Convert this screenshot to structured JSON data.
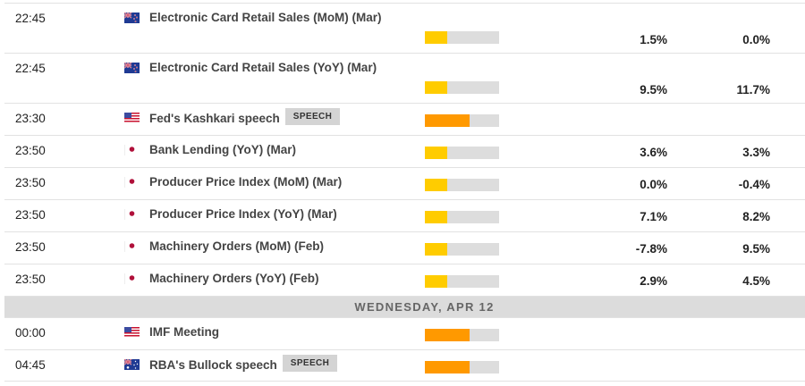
{
  "colors": {
    "impact_low": "#ffcc00",
    "impact_medium": "#ff9900",
    "impact_track": "#dddddd",
    "tag_bg": "#d4d4d4",
    "day_header_bg": "#dcdcdc"
  },
  "rows_before": [
    {
      "time": "22:45",
      "flag": "new-zealand",
      "event": "Electronic Card Retail Sales (MoM) (Mar)",
      "tag": "",
      "impact": "low",
      "impact_pct": 30,
      "actual": "1.5%",
      "forecast": "0.0%",
      "layout": "tall"
    },
    {
      "time": "22:45",
      "flag": "new-zealand",
      "event": "Electronic Card Retail Sales (YoY) (Mar)",
      "tag": "",
      "impact": "low",
      "impact_pct": 30,
      "actual": "9.5%",
      "forecast": "11.7%",
      "layout": "tall"
    },
    {
      "time": "23:30",
      "flag": "united-states",
      "event": "Fed's Kashkari speech",
      "tag": "SPEECH",
      "impact": "medium",
      "impact_pct": 60,
      "actual": "",
      "forecast": "",
      "layout": "short"
    },
    {
      "time": "23:50",
      "flag": "japan",
      "event": "Bank Lending (YoY) (Mar)",
      "tag": "",
      "impact": "low",
      "impact_pct": 30,
      "actual": "3.6%",
      "forecast": "3.3%",
      "layout": "short"
    },
    {
      "time": "23:50",
      "flag": "japan",
      "event": "Producer Price Index (MoM) (Mar)",
      "tag": "",
      "impact": "low",
      "impact_pct": 30,
      "actual": "0.0%",
      "forecast": "-0.4%",
      "layout": "short"
    },
    {
      "time": "23:50",
      "flag": "japan",
      "event": "Producer Price Index (YoY) (Mar)",
      "tag": "",
      "impact": "low",
      "impact_pct": 30,
      "actual": "7.1%",
      "forecast": "8.2%",
      "layout": "short"
    },
    {
      "time": "23:50",
      "flag": "japan",
      "event": "Machinery Orders (MoM) (Feb)",
      "tag": "",
      "impact": "low",
      "impact_pct": 30,
      "actual": "-7.8%",
      "forecast": "9.5%",
      "layout": "short"
    },
    {
      "time": "23:50",
      "flag": "japan",
      "event": "Machinery Orders (YoY) (Feb)",
      "tag": "",
      "impact": "low",
      "impact_pct": 30,
      "actual": "2.9%",
      "forecast": "4.5%",
      "layout": "short"
    }
  ],
  "day_header": "WEDNESDAY, APR 12",
  "rows_after": [
    {
      "time": "00:00",
      "flag": "united-states",
      "event": "IMF Meeting",
      "tag": "",
      "impact": "medium",
      "impact_pct": 60,
      "actual": "",
      "forecast": "",
      "layout": "short"
    },
    {
      "time": "04:45",
      "flag": "australia",
      "event": "RBA's Bullock speech",
      "tag": "SPEECH",
      "impact": "medium",
      "impact_pct": 60,
      "actual": "",
      "forecast": "",
      "layout": "short"
    }
  ]
}
